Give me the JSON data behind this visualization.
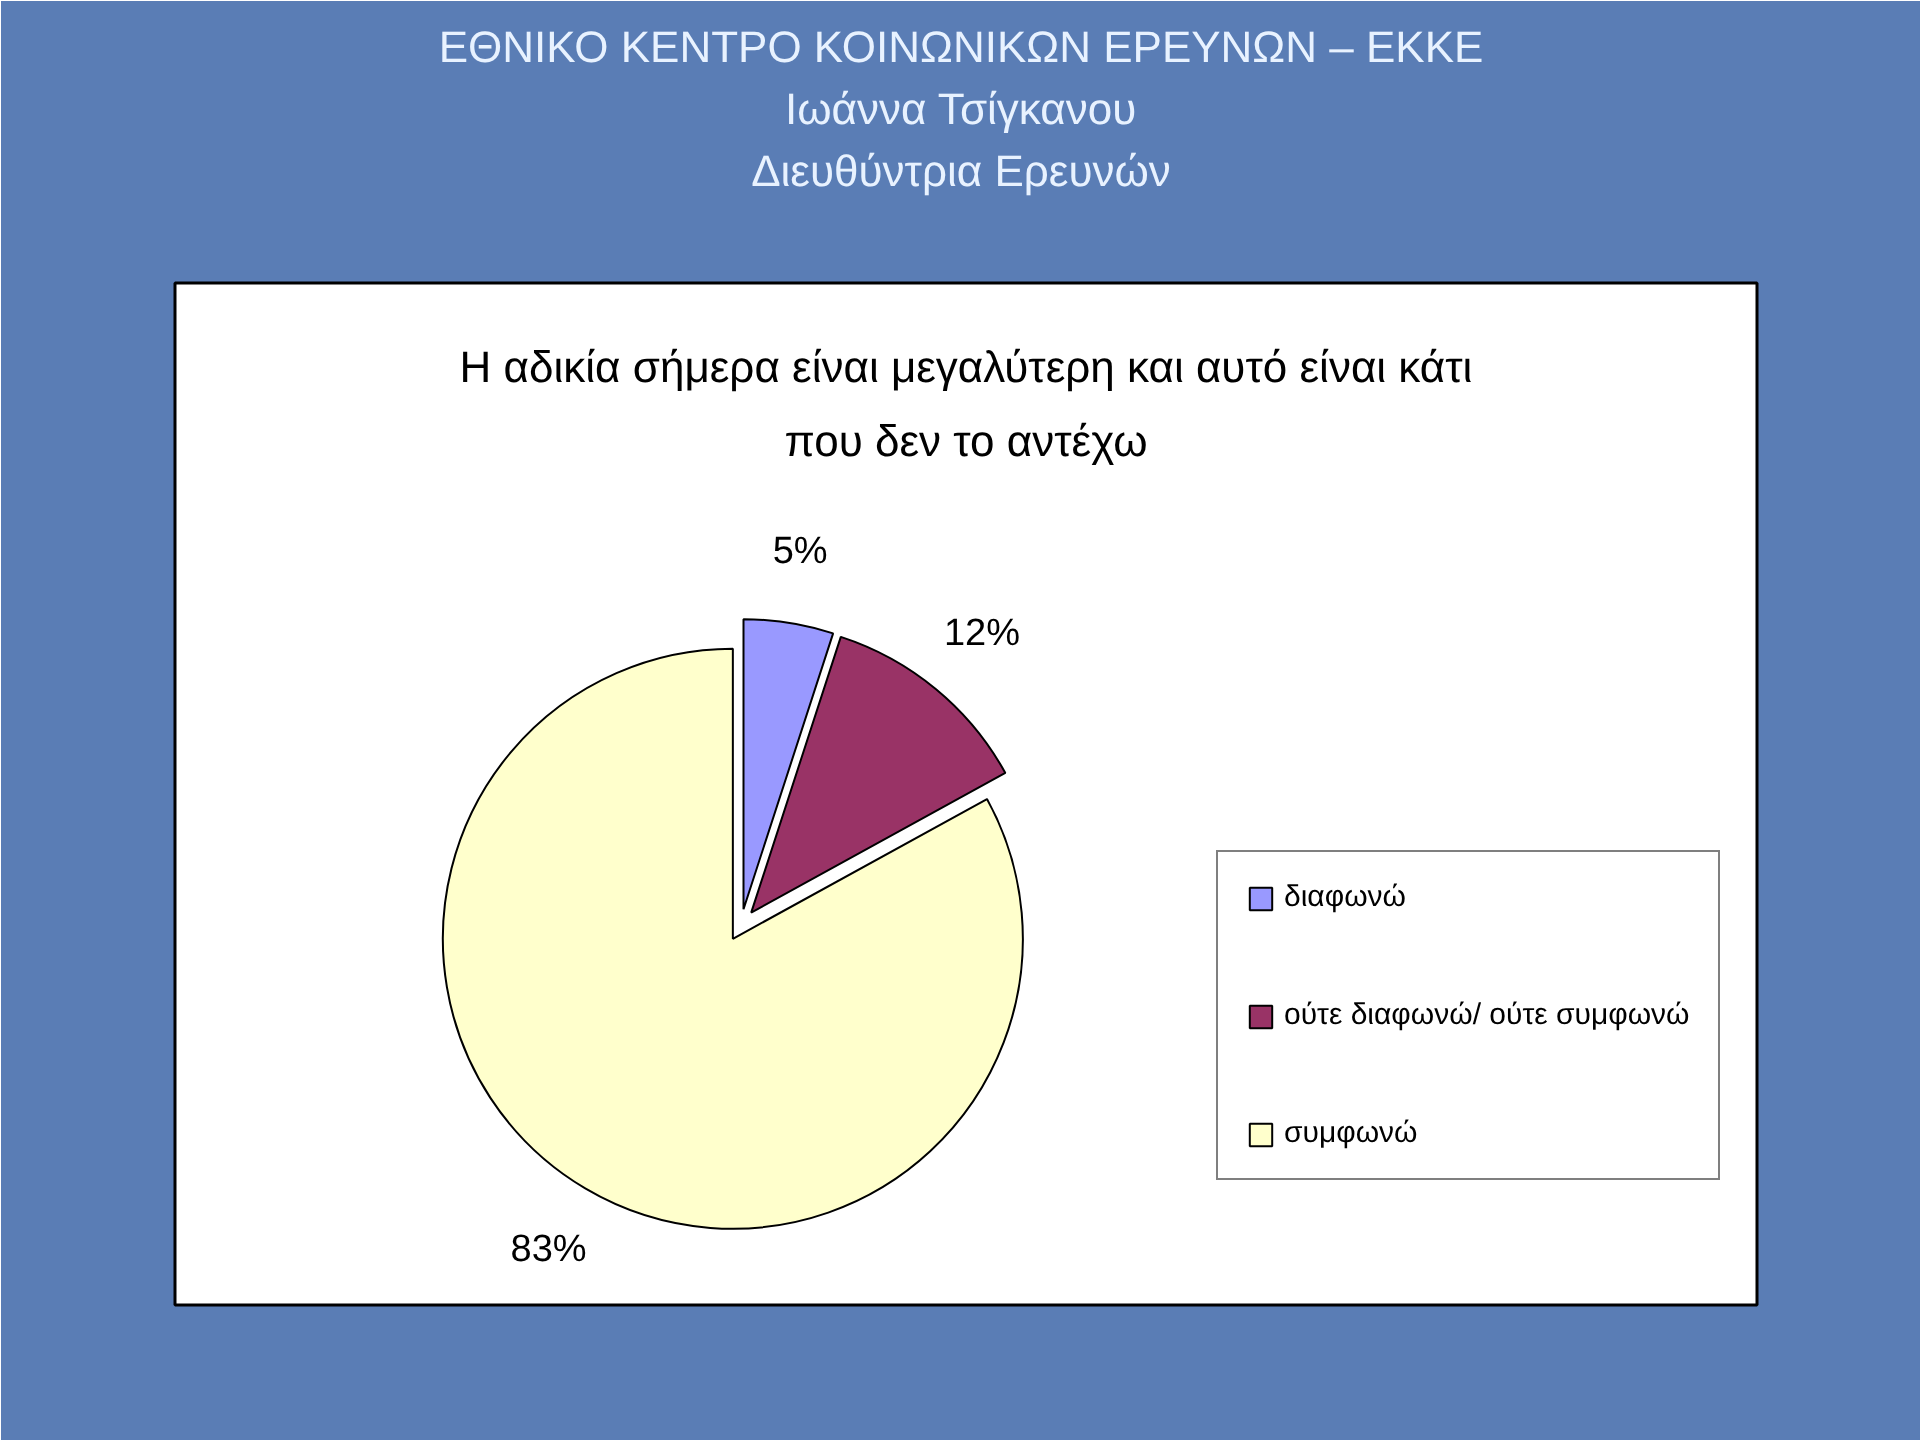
{
  "chart_data": {
    "type": "pie",
    "title": "Η αδικία σήμερα είναι μεγαλύτερη και αυτό είναι κάτι που δεν το αντέχω",
    "annotations": [
      "ΕΘΝΙΚΟ ΚΕΝΤΡΟ ΚΟΙΝΩΝΙΚΩΝ ΕΡΕΥΝΩΝ – ΕΚΚΕ",
      "Ιωάννα Τσίγκανου",
      "Διευθύντρια Ερευνών"
    ],
    "categories": [
      "διαφωνώ",
      "ούτε διαφωνώ/ ούτε συμφωνώ",
      "συμφωνώ"
    ],
    "values": [
      5,
      12,
      83
    ],
    "value_labels": [
      "5%",
      "12%",
      "83%"
    ],
    "colors": [
      "#9999ff",
      "#993366",
      "#ffffcc"
    ],
    "legend": "right"
  }
}
